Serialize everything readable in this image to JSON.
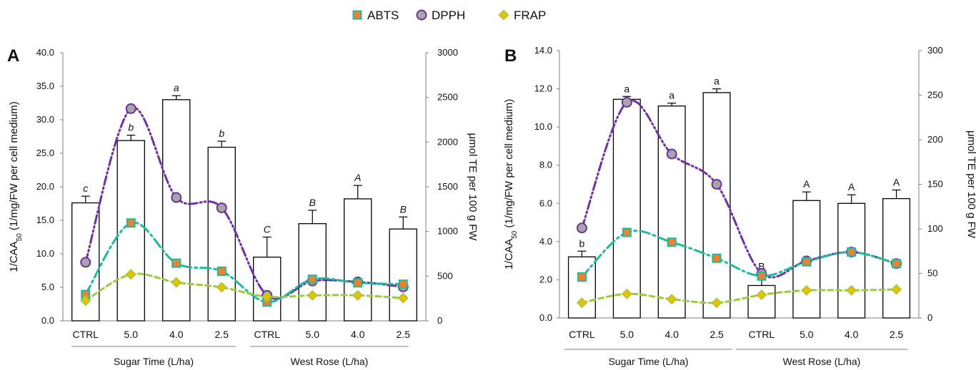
{
  "legend": [
    {
      "label": "ABTS",
      "color": "#f08030",
      "edge": "#1abc9c",
      "marker": "square"
    },
    {
      "label": "DPPH",
      "color": "#a6a6a6",
      "edge": "#7030a0",
      "marker": "circle"
    },
    {
      "label": "FRAP",
      "color": "#e8c000",
      "edge": "#9ccc3c",
      "marker": "diamond"
    }
  ],
  "chart_data": [
    {
      "panel": "A",
      "type": "bar",
      "categories": [
        "CTRL",
        "5.0",
        "4.0",
        "2.5",
        "CTRL",
        "5.0",
        "4.0",
        "2.5"
      ],
      "groups": [
        {
          "label": "Sugar Time (L/ha)",
          "span": [
            0,
            3
          ]
        },
        {
          "label": "West Rose (L/ha)",
          "span": [
            4,
            7
          ]
        }
      ],
      "ylabel_left": "1/CAA",
      "ylabel_left_sub": "50",
      "ylabel_left_rest": " (1/mg/FW per cell medium)",
      "ylabel_right": "μmol TE per 100 g FW",
      "ylim_left": [
        0,
        40
      ],
      "yticks_left": [
        "0.0",
        "5.0",
        "10.0",
        "15.0",
        "20.0",
        "25.0",
        "30.0",
        "35.0",
        "40.0"
      ],
      "ylim_right": [
        0,
        3000
      ],
      "yticks_right": [
        "0",
        "500",
        "1000",
        "1500",
        "2000",
        "2500",
        "3000"
      ],
      "bars": {
        "values": [
          17.6,
          26.9,
          33.0,
          25.9,
          9.5,
          14.5,
          18.2,
          13.7
        ],
        "errors": [
          1.0,
          0.8,
          0.6,
          0.9,
          3.0,
          2.0,
          2.0,
          1.8
        ]
      },
      "letters": [
        "c",
        "b",
        "a",
        "b",
        "C",
        "B",
        "A",
        "B"
      ],
      "letters_italic": true,
      "series": [
        {
          "name": "ABTS",
          "values": [
            295,
            1095,
            645,
            555,
            210,
            465,
            425,
            410
          ]
        },
        {
          "name": "DPPH",
          "values": [
            655,
            2375,
            1380,
            1265,
            285,
            445,
            435,
            380
          ]
        },
        {
          "name": "FRAP",
          "values": [
            225,
            520,
            430,
            375,
            270,
            285,
            285,
            255
          ]
        }
      ]
    },
    {
      "panel": "B",
      "type": "bar",
      "categories": [
        "CTRL",
        "5.0",
        "4.0",
        "2.5",
        "CTRL",
        "5.0",
        "4.0",
        "2.5"
      ],
      "groups": [
        {
          "label": "Sugar Time (L/ha)",
          "span": [
            0,
            3
          ]
        },
        {
          "label": "West Rose (L/ha)",
          "span": [
            4,
            7
          ]
        }
      ],
      "ylabel_left": "1/CAA",
      "ylabel_left_sub": "50",
      "ylabel_left_rest": " (1/mg/FW per cell medium)",
      "ylabel_right": "μmol TE per 100 g FW",
      "ylim_left": [
        0,
        14
      ],
      "yticks_left": [
        "0.0",
        "2.0",
        "4.0",
        "6.0",
        "8.0",
        "10.0",
        "12.0",
        "14.0"
      ],
      "ylim_right": [
        0,
        300
      ],
      "yticks_right": [
        "0",
        "50",
        "100",
        "150",
        "200",
        "250",
        "300"
      ],
      "bars": {
        "values": [
          3.2,
          11.45,
          11.1,
          11.8,
          1.7,
          6.15,
          6.0,
          6.25
        ],
        "errors": [
          0.3,
          0.15,
          0.15,
          0.2,
          0.6,
          0.45,
          0.45,
          0.45
        ]
      },
      "letters": [
        "b",
        "a",
        "a",
        "a",
        "B",
        "A",
        "A",
        "A"
      ],
      "letters_italic": false,
      "series": [
        {
          "name": "ABTS",
          "values": [
            46,
            96,
            85,
            67,
            47,
            63,
            74,
            61
          ]
        },
        {
          "name": "DPPH",
          "values": [
            101,
            242,
            184,
            150,
            50,
            64,
            74,
            61
          ]
        },
        {
          "name": "FRAP",
          "values": [
            17,
            27,
            21,
            17,
            26,
            31,
            31,
            32
          ]
        }
      ]
    }
  ]
}
